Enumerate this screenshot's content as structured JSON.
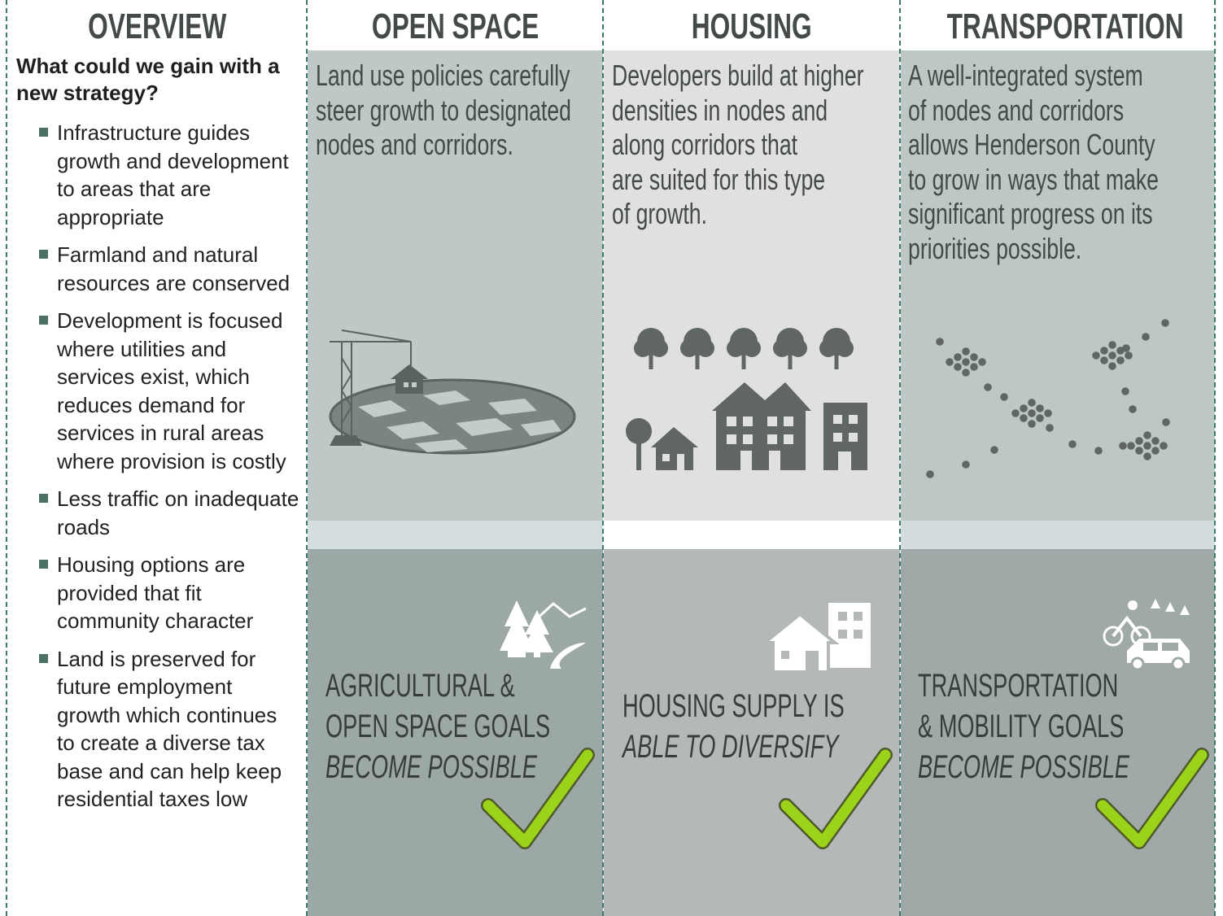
{
  "overview": {
    "title": "OVERVIEW",
    "question": "What could we gain with a new strategy?",
    "bullets": [
      "Infrastructure guides growth and development to areas that are appropriate",
      "Farmland and natural resources are conserved",
      "Development is focused where utilities and services exist, which reduces demand for services in rural areas where provision is costly",
      "Less traffic on inadequate roads",
      "Housing options are provided that fit community character",
      "Land is preserved for future employment growth which continues to create a diverse tax base and can help keep residential taxes low"
    ]
  },
  "panels": [
    {
      "title": "OPEN SPACE",
      "description_lines": [
        "Land use policies carefully",
        "steer growth to designated",
        "nodes and corridors."
      ],
      "goal_lines": [
        "AGRICULTURAL &",
        "OPEN SPACE GOALS"
      ],
      "goal_emphasis": "BECOME POSSIBLE"
    },
    {
      "title": "HOUSING",
      "description_lines": [
        "Developers build at higher",
        "densities in nodes and",
        "along corridors that",
        "are suited for this type",
        "of growth."
      ],
      "goal_lines": [
        "HOUSING SUPPLY IS"
      ],
      "goal_emphasis": "ABLE TO DIVERSIFY"
    },
    {
      "title": "TRANSPORTATION",
      "description_lines": [
        "A well-integrated system",
        "of nodes and corridors",
        "allows Henderson County",
        "to grow in ways that make",
        "significant progress on its",
        "priorities possible."
      ],
      "goal_lines": [
        "TRANSPORTATION",
        "& MOBILITY GOALS"
      ],
      "goal_emphasis": "BECOME POSSIBLE"
    }
  ]
}
